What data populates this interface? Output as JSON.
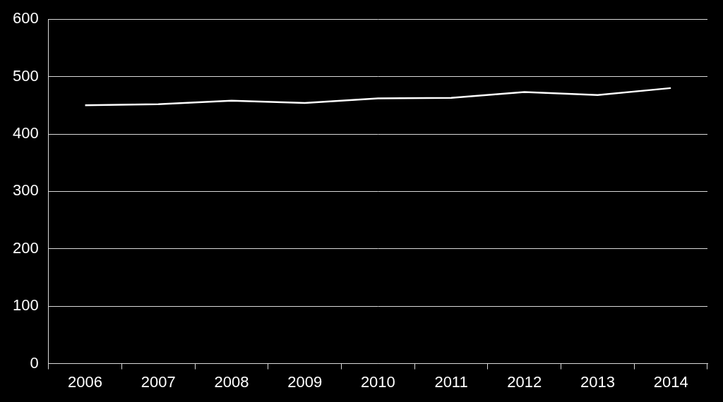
{
  "chart_data": {
    "type": "line",
    "categories": [
      "2006",
      "2007",
      "2008",
      "2009",
      "2010",
      "2011",
      "2012",
      "2013",
      "2014"
    ],
    "values": [
      450,
      452,
      458,
      454,
      462,
      463,
      473,
      468,
      480
    ],
    "color": "#ffffff",
    "ylim": [
      0,
      600
    ],
    "yticks": [
      0,
      100,
      200,
      300,
      400,
      500,
      600
    ],
    "grid": true
  }
}
